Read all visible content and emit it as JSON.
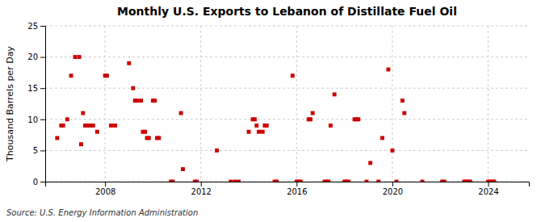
{
  "chart_data": {
    "type": "scatter",
    "title": "Monthly U.S. Exports to Lebanon of Distillate Fuel Oil",
    "ylabel": "Thousand Barrels per Day",
    "annotations": [
      "Source: U.S. Energy Information Administration"
    ],
    "color": "#cc0000",
    "marker": "square",
    "grid": true,
    "xlim": [
      2005.5,
      2025.7
    ],
    "xticks": [
      2008,
      2012,
      2016,
      2020,
      2024
    ],
    "ylim": [
      0,
      25
    ],
    "yticks": [
      0,
      5,
      10,
      15,
      20,
      25
    ],
    "x": [
      2006.0,
      2006.17,
      2006.25,
      2006.42,
      2006.58,
      2006.75,
      2006.92,
      2007.0,
      2007.08,
      2007.17,
      2007.25,
      2007.33,
      2007.42,
      2007.5,
      2007.67,
      2008.0,
      2008.08,
      2008.25,
      2008.42,
      2009.0,
      2009.17,
      2009.25,
      2009.33,
      2009.5,
      2009.58,
      2009.67,
      2009.75,
      2009.83,
      2010.0,
      2010.08,
      2010.17,
      2010.25,
      2010.75,
      2010.83,
      2011.17,
      2011.25,
      2011.75,
      2011.83,
      2012.67,
      2013.25,
      2013.42,
      2013.58,
      2014.0,
      2014.17,
      2014.25,
      2014.33,
      2014.42,
      2014.58,
      2014.67,
      2014.75,
      2015.08,
      2015.17,
      2015.83,
      2016.0,
      2016.08,
      2016.17,
      2016.5,
      2016.58,
      2016.67,
      2017.17,
      2017.25,
      2017.33,
      2017.42,
      2017.58,
      2018.0,
      2018.08,
      2018.17,
      2018.42,
      2018.5,
      2018.58,
      2018.92,
      2019.08,
      2019.42,
      2019.58,
      2019.83,
      2020.0,
      2020.17,
      2020.42,
      2020.5,
      2021.25,
      2022.08,
      2022.17,
      2023.0,
      2023.08,
      2023.17,
      2023.25,
      2024.0,
      2024.08,
      2024.17,
      2024.25
    ],
    "values": [
      7,
      9,
      9,
      10,
      17,
      20,
      20,
      6,
      11,
      9,
      9,
      9,
      9,
      9,
      8,
      17,
      17,
      9,
      9,
      19,
      15,
      13,
      13,
      13,
      8,
      8,
      7,
      7,
      13,
      13,
      7,
      7,
      0,
      0,
      11,
      2,
      0,
      0,
      5,
      0,
      0,
      0,
      8,
      10,
      10,
      9,
      8,
      8,
      9,
      9,
      0,
      0,
      17,
      0,
      0,
      0,
      10,
      10,
      11,
      0,
      0,
      0,
      9,
      14,
      0,
      0,
      0,
      10,
      10,
      10,
      0,
      3,
      0,
      7,
      18,
      5,
      0,
      13,
      11,
      0,
      0,
      0,
      0,
      0,
      0,
      0,
      0,
      0,
      0,
      0
    ]
  }
}
